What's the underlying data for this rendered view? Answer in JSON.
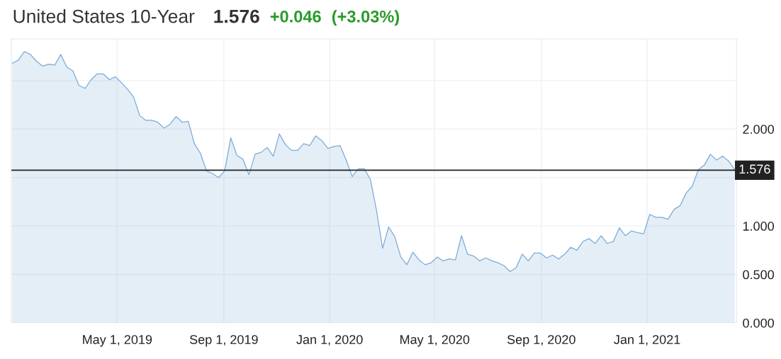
{
  "chart_data": {
    "type": "area",
    "title": "United States 10-Year",
    "annotations": [
      "1.576",
      "+0.046",
      "(+3.03%)"
    ],
    "x": [
      "2018-12-31",
      "2019-01-07",
      "2019-01-14",
      "2019-01-21",
      "2019-01-28",
      "2019-02-04",
      "2019-02-11",
      "2019-02-18",
      "2019-02-25",
      "2019-03-04",
      "2019-03-11",
      "2019-03-18",
      "2019-03-25",
      "2019-04-01",
      "2019-04-08",
      "2019-04-15",
      "2019-04-22",
      "2019-04-29",
      "2019-05-06",
      "2019-05-13",
      "2019-05-20",
      "2019-05-27",
      "2019-06-03",
      "2019-06-10",
      "2019-06-17",
      "2019-06-24",
      "2019-07-01",
      "2019-07-08",
      "2019-07-15",
      "2019-07-22",
      "2019-07-29",
      "2019-08-05",
      "2019-08-12",
      "2019-08-19",
      "2019-08-26",
      "2019-09-02",
      "2019-09-09",
      "2019-09-16",
      "2019-09-23",
      "2019-09-30",
      "2019-10-07",
      "2019-10-14",
      "2019-10-21",
      "2019-10-28",
      "2019-11-04",
      "2019-11-11",
      "2019-11-18",
      "2019-11-25",
      "2019-12-02",
      "2019-12-09",
      "2019-12-16",
      "2019-12-23",
      "2019-12-30",
      "2020-01-06",
      "2020-01-13",
      "2020-01-20",
      "2020-01-27",
      "2020-02-03",
      "2020-02-10",
      "2020-02-17",
      "2020-02-24",
      "2020-03-02",
      "2020-03-09",
      "2020-03-16",
      "2020-03-23",
      "2020-03-30",
      "2020-04-06",
      "2020-04-13",
      "2020-04-20",
      "2020-04-27",
      "2020-05-04",
      "2020-05-11",
      "2020-05-18",
      "2020-05-25",
      "2020-06-01",
      "2020-06-08",
      "2020-06-15",
      "2020-06-22",
      "2020-06-29",
      "2020-07-06",
      "2020-07-13",
      "2020-07-20",
      "2020-07-27",
      "2020-08-03",
      "2020-08-10",
      "2020-08-17",
      "2020-08-24",
      "2020-08-31",
      "2020-09-07",
      "2020-09-14",
      "2020-09-21",
      "2020-09-28",
      "2020-10-05",
      "2020-10-12",
      "2020-10-19",
      "2020-10-26",
      "2020-11-02",
      "2020-11-09",
      "2020-11-16",
      "2020-11-23",
      "2020-11-30",
      "2020-12-07",
      "2020-12-14",
      "2020-12-21",
      "2020-12-28",
      "2021-01-04",
      "2021-01-11",
      "2021-01-18",
      "2021-01-25",
      "2021-02-01",
      "2021-02-08",
      "2021-02-15",
      "2021-02-22",
      "2021-03-01",
      "2021-03-08",
      "2021-03-15",
      "2021-03-22",
      "2021-03-29",
      "2021-04-05",
      "2021-04-12"
    ],
    "series": [
      {
        "color": "#7aaad6",
        "values": [
          2.68,
          2.71,
          2.8,
          2.77,
          2.7,
          2.65,
          2.67,
          2.66,
          2.77,
          2.64,
          2.6,
          2.45,
          2.42,
          2.51,
          2.57,
          2.57,
          2.51,
          2.54,
          2.48,
          2.41,
          2.33,
          2.14,
          2.09,
          2.09,
          2.07,
          2.01,
          2.05,
          2.13,
          2.07,
          2.08,
          1.85,
          1.75,
          1.57,
          1.54,
          1.5,
          1.57,
          1.91,
          1.73,
          1.69,
          1.53,
          1.74,
          1.76,
          1.81,
          1.72,
          1.95,
          1.84,
          1.78,
          1.78,
          1.85,
          1.83,
          1.93,
          1.88,
          1.8,
          1.82,
          1.83,
          1.68,
          1.51,
          1.59,
          1.59,
          1.48,
          1.16,
          0.77,
          0.99,
          0.89,
          0.68,
          0.6,
          0.73,
          0.65,
          0.6,
          0.62,
          0.68,
          0.64,
          0.66,
          0.65,
          0.9,
          0.71,
          0.69,
          0.64,
          0.67,
          0.64,
          0.62,
          0.59,
          0.53,
          0.57,
          0.71,
          0.64,
          0.72,
          0.72,
          0.67,
          0.7,
          0.66,
          0.71,
          0.78,
          0.75,
          0.84,
          0.87,
          0.82,
          0.9,
          0.82,
          0.84,
          0.98,
          0.9,
          0.95,
          0.93,
          0.92,
          1.12,
          1.09,
          1.09,
          1.07,
          1.17,
          1.21,
          1.34,
          1.41,
          1.58,
          1.63,
          1.74,
          1.68,
          1.72,
          1.67,
          1.58
        ]
      }
    ],
    "xlim": [
      "2018-12-30",
      "2021-04-14"
    ],
    "xticks": [
      {
        "value": "2019-05-01",
        "label": "May 1, 2019"
      },
      {
        "value": "2019-09-01",
        "label": "Sep 1, 2019"
      },
      {
        "value": "2020-01-01",
        "label": "Jan 1, 2020"
      },
      {
        "value": "2020-05-01",
        "label": "May 1, 2020"
      },
      {
        "value": "2020-09-01",
        "label": "Sep 1, 2020"
      },
      {
        "value": "2021-01-01",
        "label": "Jan 1, 2021"
      }
    ],
    "ylim": [
      0,
      2.93
    ],
    "yticks": [
      {
        "value": 0,
        "label": "0.000"
      },
      {
        "value": 0.5,
        "label": "0.500"
      },
      {
        "value": 1,
        "label": "1.000"
      },
      {
        "value": 1.5,
        "label": null
      },
      {
        "value": 2,
        "label": "2.000"
      },
      {
        "value": 2.5,
        "label": null
      }
    ],
    "ref_lines": [
      {
        "axis": "y",
        "value": 1.576,
        "label": "1.576",
        "color": "#222222"
      }
    ],
    "grid": true,
    "legend": false,
    "marker": "none",
    "line_style": "solid"
  }
}
